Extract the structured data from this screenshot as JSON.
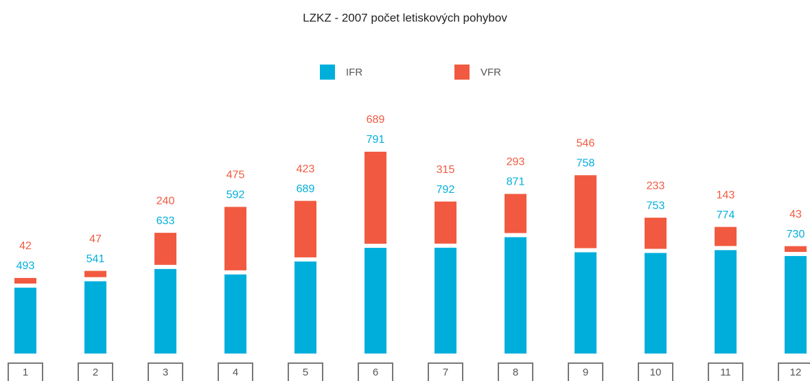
{
  "chart_data": {
    "type": "stacked_bar",
    "title": "LZKZ - 2007 počet letiskových pohybov",
    "categories": [
      "1",
      "2",
      "3",
      "4",
      "5",
      "6",
      "7",
      "8",
      "9",
      "10",
      "11",
      "12"
    ],
    "series": [
      {
        "name": "IFR",
        "color": "#00aedb",
        "values": [
          493,
          541,
          633,
          592,
          689,
          791,
          792,
          871,
          758,
          753,
          774,
          730
        ]
      },
      {
        "name": "VFR",
        "color": "#f15a40",
        "values": [
          42,
          47,
          240,
          475,
          423,
          689,
          315,
          293,
          546,
          233,
          143,
          43
        ]
      }
    ]
  }
}
